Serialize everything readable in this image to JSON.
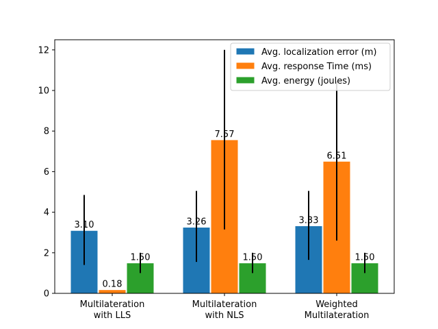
{
  "chart_data": {
    "type": "bar",
    "categories": [
      [
        "Multilateration",
        "with LLS"
      ],
      [
        "Multilateration",
        "with NLS"
      ],
      [
        "Weighted",
        "Multilateration"
      ]
    ],
    "series": [
      {
        "name": "Avg. localization error (m)",
        "color": "#1f77b4",
        "values": [
          3.1,
          3.26,
          3.33
        ],
        "labels": [
          "3.10",
          "3.26",
          "3.33"
        ],
        "err_low": [
          1.4,
          1.55,
          1.65
        ],
        "err_high": [
          4.85,
          5.05,
          5.05
        ]
      },
      {
        "name": "Avg. response Time (ms)",
        "color": "#ff7f0e",
        "values": [
          0.18,
          7.57,
          6.51
        ],
        "labels": [
          "0.18",
          "7.57",
          "6.51"
        ],
        "err_low": [
          null,
          3.15,
          2.6
        ],
        "err_high": [
          null,
          12.0,
          10.45
        ]
      },
      {
        "name": "Avg. energy (joules)",
        "color": "#2ca02c",
        "values": [
          1.5,
          1.5,
          1.5
        ],
        "labels": [
          "1.50",
          "1.50",
          "1.50"
        ],
        "err_low": [
          1.0,
          1.0,
          1.0
        ],
        "err_high": [
          2.0,
          2.0,
          2.0
        ]
      }
    ],
    "ylim": [
      0,
      12.5
    ],
    "yticks": [
      0,
      2,
      4,
      6,
      8,
      10,
      12
    ],
    "legend_position": "top-right",
    "grid": false
  }
}
